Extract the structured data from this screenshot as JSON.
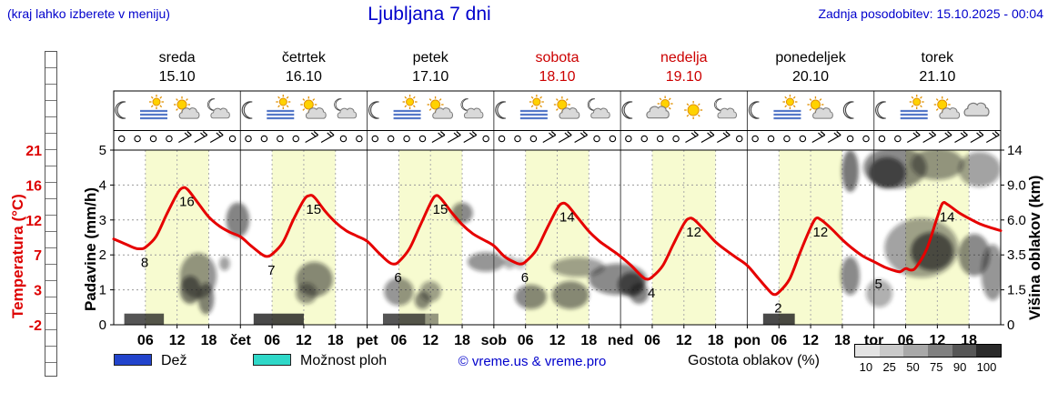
{
  "header": {
    "hint": "(kraj lahko izberete v meniju)",
    "title": "Ljubljana 7 dni",
    "updated": "Zadnja posodobitev: 15.10.2025 - 00:04"
  },
  "days": [
    {
      "name": "sreda",
      "date": "15.10",
      "color": "#000000"
    },
    {
      "name": "četrtek",
      "date": "16.10",
      "color": "#000000"
    },
    {
      "name": "petek",
      "date": "17.10",
      "color": "#000000"
    },
    {
      "name": "sobota",
      "date": "18.10",
      "color": "#cc0000"
    },
    {
      "name": "nedelja",
      "date": "19.10",
      "color": "#cc0000"
    },
    {
      "name": "ponedeljek",
      "date": "20.10",
      "color": "#000000"
    },
    {
      "name": "torek",
      "date": "21.10",
      "color": "#000000"
    }
  ],
  "axes": {
    "temperature": {
      "title": "Temperatura (°C)",
      "ticks": [
        "21",
        "16",
        "12",
        "7",
        "3",
        "-2"
      ],
      "color": "#dd0000"
    },
    "precipitation": {
      "title": "Padavine (mm/h)",
      "ticks": [
        "5",
        "4",
        "3",
        "2",
        "1",
        "0"
      ]
    },
    "cloud_height": {
      "title": "Višina oblakov (km)",
      "ticks": [
        "14",
        "9.0",
        "6.0",
        "3.5",
        "1.5",
        "0"
      ]
    },
    "x": {
      "hour_labels": [
        "06",
        "12",
        "18"
      ],
      "day_abbrevs": [
        "čet",
        "pet",
        "sob",
        "ned",
        "pon",
        "tor"
      ]
    }
  },
  "legend": {
    "rain_label": "Dež",
    "rain_color": "#2244cc",
    "showers_label": "Možnost ploh",
    "showers_color": "#2fd8c8",
    "copyright": "© vreme.us & vreme.pro",
    "cloud_density_label": "Gostota oblakov (%)",
    "density_ticks": [
      "10",
      "25",
      "50",
      "75",
      "90",
      "100"
    ],
    "density_colors": [
      "#e3e3e3",
      "#c9c9c9",
      "#a8a8a8",
      "#808080",
      "#565656",
      "#2b2b2b"
    ]
  },
  "chart_data": {
    "type": "line",
    "title": "Ljubljana 7 dni",
    "x_unit": "hours from 15.10 00:00",
    "x_range": [
      0,
      168
    ],
    "temperature_axis_range": [
      -2,
      21
    ],
    "precip_axis_range_mm_h": [
      0,
      5
    ],
    "cloud_height_ticks_km": [
      0,
      1.5,
      3.5,
      6,
      9,
      14
    ],
    "daylight_hours": [
      6,
      18
    ],
    "daylight_band_color": "#f7fbd0",
    "daily_min_max": [
      {
        "day": "sreda",
        "min": 8,
        "max": 16
      },
      {
        "day": "četrtek",
        "min": 7,
        "max": 15
      },
      {
        "day": "petek",
        "min": 6,
        "max": 15
      },
      {
        "day": "sobota",
        "min": 6,
        "max": 14
      },
      {
        "day": "nedelja",
        "min": 4,
        "max": 12
      },
      {
        "day": "ponedeljek",
        "min": 2,
        "max": 12
      },
      {
        "day": "torek",
        "min": 5,
        "max": 14
      }
    ],
    "series": [
      {
        "name": "Temperatura (°C)",
        "color": "#e60000",
        "points": [
          [
            0,
            9.3
          ],
          [
            2,
            8.7
          ],
          [
            4,
            8.1
          ],
          [
            5,
            8
          ],
          [
            6,
            8.2
          ],
          [
            8,
            9.6
          ],
          [
            10,
            12.5
          ],
          [
            12,
            15.2
          ],
          [
            13,
            16
          ],
          [
            14,
            15.8
          ],
          [
            16,
            14
          ],
          [
            18,
            12.2
          ],
          [
            20,
            11
          ],
          [
            22,
            10.2
          ],
          [
            24,
            9.6
          ],
          [
            26,
            8.4
          ],
          [
            28,
            7.3
          ],
          [
            29,
            7
          ],
          [
            30,
            7.3
          ],
          [
            32,
            8.8
          ],
          [
            34,
            11.8
          ],
          [
            36,
            14.4
          ],
          [
            37,
            15
          ],
          [
            38,
            14.8
          ],
          [
            40,
            13
          ],
          [
            42,
            11.5
          ],
          [
            44,
            10.4
          ],
          [
            46,
            9.7
          ],
          [
            48,
            9
          ],
          [
            50,
            7.6
          ],
          [
            52,
            6.3
          ],
          [
            53,
            6
          ],
          [
            54,
            6.3
          ],
          [
            56,
            8
          ],
          [
            58,
            11
          ],
          [
            60,
            14
          ],
          [
            61,
            15
          ],
          [
            62,
            14.6
          ],
          [
            64,
            12.8
          ],
          [
            66,
            11.2
          ],
          [
            68,
            10
          ],
          [
            70,
            9.2
          ],
          [
            72,
            8.4
          ],
          [
            74,
            7
          ],
          [
            76,
            6.2
          ],
          [
            77,
            6
          ],
          [
            78,
            6.3
          ],
          [
            80,
            7.8
          ],
          [
            82,
            10.6
          ],
          [
            84,
            13.3
          ],
          [
            85,
            14
          ],
          [
            86,
            13.7
          ],
          [
            88,
            12
          ],
          [
            90,
            10.3
          ],
          [
            92,
            9
          ],
          [
            94,
            8
          ],
          [
            96,
            7
          ],
          [
            98,
            5.8
          ],
          [
            100,
            4.4
          ],
          [
            101,
            4
          ],
          [
            102,
            4.3
          ],
          [
            104,
            5.8
          ],
          [
            106,
            8.6
          ],
          [
            108,
            11.3
          ],
          [
            109,
            12
          ],
          [
            110,
            11.8
          ],
          [
            112,
            10.4
          ],
          [
            114,
            8.9
          ],
          [
            116,
            7.8
          ],
          [
            118,
            6.8
          ],
          [
            120,
            5.8
          ],
          [
            122,
            4.2
          ],
          [
            124,
            2.6
          ],
          [
            125,
            2
          ],
          [
            126,
            2.3
          ],
          [
            128,
            4
          ],
          [
            130,
            7.5
          ],
          [
            132,
            10.8
          ],
          [
            133,
            12
          ],
          [
            134,
            11.8
          ],
          [
            136,
            10.6
          ],
          [
            138,
            9.2
          ],
          [
            140,
            8
          ],
          [
            142,
            7
          ],
          [
            144,
            6.3
          ],
          [
            146,
            5.6
          ],
          [
            148,
            5.1
          ],
          [
            149,
            5
          ],
          [
            150,
            5.4
          ],
          [
            151,
            5.2
          ],
          [
            152,
            5.6
          ],
          [
            154,
            8
          ],
          [
            156,
            12.2
          ],
          [
            157,
            14
          ],
          [
            158,
            13.8
          ],
          [
            160,
            12.8
          ],
          [
            162,
            12
          ],
          [
            164,
            11.3
          ],
          [
            166,
            10.8
          ],
          [
            168,
            10.4
          ]
        ]
      }
    ],
    "extreme_labels": [
      [
        5,
        8,
        "8"
      ],
      [
        13,
        16,
        "16"
      ],
      [
        29,
        7,
        "7"
      ],
      [
        37,
        15,
        "15"
      ],
      [
        53,
        6,
        "6"
      ],
      [
        61,
        15,
        "15"
      ],
      [
        77,
        6,
        "6"
      ],
      [
        85,
        14,
        "14"
      ],
      [
        101,
        4,
        "4"
      ],
      [
        109,
        12,
        "12"
      ],
      [
        125,
        2,
        "2"
      ],
      [
        133,
        12,
        "12"
      ],
      [
        144,
        5.2,
        "5"
      ],
      [
        157,
        14,
        "14"
      ]
    ],
    "clouds": [
      [
        16,
        1.4,
        3.5,
        0.65,
        0.45
      ],
      [
        14.5,
        1.0,
        2,
        0.4,
        0.6
      ],
      [
        17.5,
        0.75,
        1.5,
        0.45,
        0.55
      ],
      [
        21,
        1.75,
        1,
        0.2,
        0.4
      ],
      [
        23.5,
        3.0,
        2.2,
        0.5,
        0.55
      ],
      [
        38,
        1.3,
        3.5,
        0.5,
        0.5
      ],
      [
        36.5,
        0.9,
        2,
        0.3,
        0.45
      ],
      [
        54,
        0.95,
        2.8,
        0.4,
        0.45
      ],
      [
        58.5,
        0.7,
        1.5,
        0.25,
        0.5
      ],
      [
        60,
        0.95,
        2,
        0.3,
        0.4
      ],
      [
        66,
        3.2,
        2,
        0.3,
        0.5
      ],
      [
        70.5,
        1.8,
        3.5,
        0.28,
        0.45
      ],
      [
        75,
        1.78,
        1.2,
        0.18,
        0.35
      ],
      [
        79,
        0.8,
        3,
        0.35,
        0.5
      ],
      [
        77,
        1.75,
        1,
        0.15,
        0.3
      ],
      [
        88,
        1.65,
        5,
        0.28,
        0.4
      ],
      [
        86.5,
        0.85,
        3.5,
        0.4,
        0.5
      ],
      [
        95.5,
        1.3,
        5.5,
        0.45,
        0.5
      ],
      [
        98,
        1.15,
        2.5,
        0.35,
        0.65
      ],
      [
        99.5,
        0.9,
        1.8,
        0.3,
        0.55
      ],
      [
        139.5,
        4.4,
        1.6,
        0.6,
        0.6
      ],
      [
        139.5,
        1.4,
        1.8,
        0.55,
        0.5
      ],
      [
        148,
        4.5,
        6,
        0.6,
        0.5
      ],
      [
        146.5,
        4.35,
        3.5,
        0.45,
        0.7
      ],
      [
        156,
        4.6,
        5,
        0.45,
        0.45
      ],
      [
        164,
        4.45,
        4,
        0.5,
        0.4
      ],
      [
        145,
        0.9,
        2.5,
        0.4,
        0.35
      ],
      [
        153,
        2.2,
        7,
        0.85,
        0.4
      ],
      [
        155,
        2.1,
        4,
        0.55,
        0.65
      ],
      [
        163,
        2.0,
        3,
        0.6,
        0.5
      ],
      [
        166.5,
        1.5,
        2.2,
        0.8,
        0.45
      ]
    ],
    "fog_bars": [
      [
        2,
        9.5,
        0.75
      ],
      [
        26.5,
        36,
        0.8
      ],
      [
        51,
        59,
        0.75
      ],
      [
        59,
        61.5,
        0.45
      ],
      [
        123,
        129,
        0.8
      ]
    ],
    "weather_icons": [
      [
        "moon",
        "fog-sun",
        "sun-cloud",
        "moon-cloud"
      ],
      [
        "moon",
        "fog-sun",
        "sun-cloud",
        "moon-cloud"
      ],
      [
        "moon",
        "fog-sun",
        "sun-cloud",
        "moon-cloud"
      ],
      [
        "moon",
        "fog-sun",
        "sun-cloud",
        "moon-cloud"
      ],
      [
        "moon",
        "cloud-sun",
        "sun",
        "moon-cloud"
      ],
      [
        "moon",
        "fog-sun",
        "sun-cloud",
        "moon"
      ],
      [
        "moon",
        "fog-sun",
        "sun-cloud",
        "cloud"
      ]
    ],
    "wind": [
      [
        "c",
        "c",
        "c",
        "c",
        "b",
        "b",
        "b",
        "c"
      ],
      [
        "c",
        "c",
        "c",
        "c",
        "b",
        "b",
        "c",
        "c"
      ],
      [
        "c",
        "c",
        "c",
        "c",
        "b",
        "b",
        "b",
        "c"
      ],
      [
        "c",
        "c",
        "c",
        "b",
        "b",
        "b",
        "c",
        "c"
      ],
      [
        "c",
        "c",
        "c",
        "c",
        "b",
        "b",
        "b",
        "c"
      ],
      [
        "c",
        "c",
        "c",
        "c",
        "b",
        "b",
        "c",
        "c"
      ],
      [
        "c",
        "c",
        "b",
        "b",
        "b",
        "b",
        "b",
        "b"
      ]
    ]
  }
}
